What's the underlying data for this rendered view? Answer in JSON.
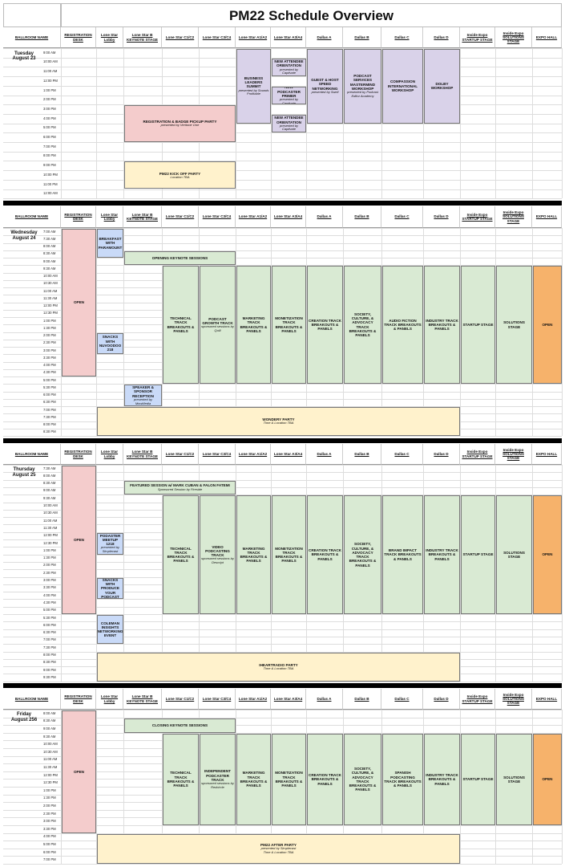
{
  "title": "PM22 Schedule Overview",
  "columns": [
    "BALLROOM NAME",
    "REGISTRATION DESK",
    "Lone Star Lobby",
    "Lone Star B KEYNOTE STAGE",
    "Lone Star C1/C2",
    "Lone Star C3/C4",
    "Lone Star A1/A2",
    "Lone Star A3/A4",
    "Dallas A",
    "Dallas B",
    "Dallas C",
    "Dallas D",
    "Inside Expo STARTUP STAGE",
    "Inside Expo SOLUTIONS STAGE",
    "EXPO HALL"
  ],
  "days": [
    {
      "label": "Tuesday\nAugust 23",
      "times": [
        "9:00 AM",
        "10:00 AM",
        "11:00 AM",
        "12:00 PM",
        "1:00 PM",
        "2:00 PM",
        "3:00 PM",
        "4:00 PM",
        "5:00 PM",
        "6:00 PM",
        "7:00 PM",
        "8:00 PM",
        "9:00 PM",
        "10:00 PM",
        "11:00 PM",
        "12:00 AM"
      ],
      "events": [
        {
          "col": 6,
          "cs": 1,
          "r0": 0,
          "r1": 8,
          "color": "purple",
          "title": "BUSINESS LEADERS SUMMIT",
          "sub": "presented by Sounds Profitable"
        },
        {
          "col": 7,
          "cs": 1,
          "r0": 1,
          "r1": 3,
          "color": "purple",
          "title": "NEW ATTENDEE ORIENTATION",
          "sub": "presented by Captivate"
        },
        {
          "col": 7,
          "cs": 1,
          "r0": 4,
          "r1": 6,
          "color": "purple",
          "title": "NEW PODCASTER PRIMER",
          "sub": "presented by Captivate"
        },
        {
          "col": 7,
          "cs": 1,
          "r0": 7,
          "r1": 9,
          "color": "purple",
          "title": "NEW ATTENDEE ORIENTATION",
          "sub": "presented by Captivate"
        },
        {
          "col": 8,
          "cs": 1,
          "r0": 0,
          "r1": 8,
          "color": "purple",
          "title": "GUEST & HOST SPEED NETWORKING",
          "sub": "presented by Swell"
        },
        {
          "col": 9,
          "cs": 1,
          "r0": 0,
          "r1": 8,
          "color": "purple",
          "title": "PODCAST SERVICES MASTERMIND WORKSHOP",
          "sub": "presented by Podcast Editor Academy"
        },
        {
          "col": 10,
          "cs": 1,
          "r0": 0,
          "r1": 8,
          "color": "purple",
          "title": "COMPASSION INTERNATIONAL WORKSHOP",
          "sub": ""
        },
        {
          "col": 11,
          "cs": 1,
          "r0": 0,
          "r1": 8,
          "color": "purple",
          "title": "DOLBY WORKSHOP",
          "sub": ""
        },
        {
          "col": 3,
          "cs": 3,
          "r0": 6,
          "r1": 10,
          "color": "pink",
          "title": "REGISTRATION & BADGE PICKUP PARTY",
          "sub": "presented by Veritone One"
        },
        {
          "col": 3,
          "cs": 3,
          "r0": 12,
          "r1": 15,
          "color": "yellow",
          "title": "PM22 KICK OFF PARTY",
          "sub": "Location TBA"
        }
      ]
    },
    {
      "label": "Wednesday\nAugust 24",
      "times": [
        "7:00 AM",
        "7:30 AM",
        "8:00 AM",
        "8:30 AM",
        "9:00 AM",
        "9:30 AM",
        "10:00 AM",
        "10:30 AM",
        "11:00 AM",
        "11:30 AM",
        "12:00 PM",
        "12:30 PM",
        "1:00 PM",
        "1:30 PM",
        "2:00 PM",
        "2:30 PM",
        "3:00 PM",
        "3:30 PM",
        "4:00 PM",
        "4:30 PM",
        "5:00 PM",
        "5:30 PM",
        "6:00 PM",
        "6:30 PM",
        "7:00 PM",
        "7:30 PM",
        "8:00 PM",
        "8:30 PM"
      ],
      "events": [
        {
          "col": 1,
          "cs": 1,
          "r0": 0,
          "r1": 20,
          "color": "pink",
          "title": "OPEN",
          "sub": ""
        },
        {
          "col": 2,
          "cs": 1,
          "r0": 0,
          "r1": 4,
          "color": "blue",
          "title": "BREAKFAST WITH PARAMOUNT",
          "sub": ""
        },
        {
          "col": 3,
          "cs": 3,
          "r0": 3,
          "r1": 5,
          "color": "green",
          "title": "OPENING KEYNOTE SESSIONS",
          "sub": ""
        },
        {
          "col": 4,
          "cs": 1,
          "r0": 5,
          "r1": 21,
          "color": "green",
          "title": "TECHNICAL TRACK BREAKOUTS & PANELS",
          "sub": ""
        },
        {
          "col": 5,
          "cs": 1,
          "r0": 5,
          "r1": 21,
          "color": "green",
          "title": "PODCAST GROWTH TRACK",
          "sub": "sponsored sessions by Quill"
        },
        {
          "col": 6,
          "cs": 1,
          "r0": 5,
          "r1": 21,
          "color": "green",
          "title": "MARKETING TRACK BREAKOUTS & PANELS",
          "sub": ""
        },
        {
          "col": 7,
          "cs": 1,
          "r0": 5,
          "r1": 21,
          "color": "green",
          "title": "MONETIZATION TRACK BREAKOUTS & PANELS",
          "sub": ""
        },
        {
          "col": 8,
          "cs": 1,
          "r0": 5,
          "r1": 21,
          "color": "green",
          "title": "CREATION TRACK BREAKOUTS & PANELS",
          "sub": ""
        },
        {
          "col": 9,
          "cs": 1,
          "r0": 5,
          "r1": 21,
          "color": "green",
          "title": "SOCIETY, CULTURE, & ADVOCACY TRACK BREAKOUTS & PANELS",
          "sub": ""
        },
        {
          "col": 10,
          "cs": 1,
          "r0": 5,
          "r1": 21,
          "color": "green",
          "title": "AUDIO FICTION TRACK BREAKOUTS & PANELS",
          "sub": ""
        },
        {
          "col": 11,
          "cs": 1,
          "r0": 5,
          "r1": 21,
          "color": "green",
          "title": "INDUSTRY TRACK BREAKOUTS & PANELS",
          "sub": ""
        },
        {
          "col": 12,
          "cs": 1,
          "r0": 5,
          "r1": 21,
          "color": "green",
          "title": "STARTUP STAGE",
          "sub": ""
        },
        {
          "col": 13,
          "cs": 1,
          "r0": 5,
          "r1": 21,
          "color": "green",
          "title": "SOLUTIONS STAGE",
          "sub": ""
        },
        {
          "col": 14,
          "cs": 1,
          "r0": 5,
          "r1": 21,
          "color": "orange",
          "title": "OPEN",
          "sub": ""
        },
        {
          "col": 2,
          "cs": 1,
          "r0": 14,
          "r1": 17,
          "color": "blue",
          "title": "SNACKS WITH NUVOODOO 218",
          "sub": ""
        },
        {
          "col": 3,
          "cs": 1,
          "r0": 21,
          "r1": 24,
          "color": "blue",
          "title": "SPEAKER & SPONSOR RECEPTION",
          "sub": "presented by MowMedia"
        },
        {
          "col": 2,
          "cs": 10,
          "r0": 24,
          "r1": 28,
          "color": "yellow",
          "title": "WONDERY PARTY",
          "sub": "Time & Location TBA"
        }
      ]
    },
    {
      "label": "Thursday\nAugust 25",
      "times": [
        "7:30 AM",
        "8:00 AM",
        "8:30 AM",
        "9:00 AM",
        "9:30 AM",
        "10:00 AM",
        "10:30 AM",
        "11:00 AM",
        "11:30 AM",
        "12:00 PM",
        "12:30 PM",
        "1:00 PM",
        "1:30 PM",
        "2:00 PM",
        "2:30 PM",
        "3:00 PM",
        "3:30 PM",
        "4:00 PM",
        "4:30 PM",
        "5:00 PM",
        "5:30 PM",
        "6:00 PM",
        "6:30 PM",
        "7:00 PM",
        "7:30 PM",
        "8:00 PM",
        "8:30 PM",
        "9:00 PM",
        "9:30 PM"
      ],
      "events": [
        {
          "col": 1,
          "cs": 1,
          "r0": 0,
          "r1": 20,
          "color": "pink",
          "title": "OPEN",
          "sub": ""
        },
        {
          "col": 3,
          "cs": 3,
          "r0": 2,
          "r1": 4,
          "color": "green",
          "title": "FEATURED SESSION w/ MARK CUBAN & FALON FATEMI",
          "sub": "Sponsored Session by Fireside"
        },
        {
          "col": 4,
          "cs": 1,
          "r0": 4,
          "r1": 20,
          "color": "green",
          "title": "TECHNICAL TRACK BREAKOUTS & PANELS",
          "sub": ""
        },
        {
          "col": 5,
          "cs": 1,
          "r0": 4,
          "r1": 20,
          "color": "green",
          "title": "VIDEO PODCASTING TRACK",
          "sub": "sponsored sessions by Descript"
        },
        {
          "col": 6,
          "cs": 1,
          "r0": 4,
          "r1": 20,
          "color": "green",
          "title": "MARKETING TRACK BREAKOUTS & PANELS",
          "sub": ""
        },
        {
          "col": 7,
          "cs": 1,
          "r0": 4,
          "r1": 20,
          "color": "green",
          "title": "MONETIZATION TRACK BREAKOUTS & PANELS",
          "sub": ""
        },
        {
          "col": 8,
          "cs": 1,
          "r0": 4,
          "r1": 20,
          "color": "green",
          "title": "CREATION TRACK BREAKOUTS & PANELS",
          "sub": ""
        },
        {
          "col": 9,
          "cs": 1,
          "r0": 4,
          "r1": 20,
          "color": "green",
          "title": "SOCIETY, CULTURE, & ADVOCACY TRACK BREAKOUTS & PANELS",
          "sub": ""
        },
        {
          "col": 10,
          "cs": 1,
          "r0": 4,
          "r1": 20,
          "color": "green",
          "title": "BRAND IMPACT TRACK BREAKOUTS & PANELS",
          "sub": ""
        },
        {
          "col": 11,
          "cs": 1,
          "r0": 4,
          "r1": 20,
          "color": "green",
          "title": "INDUSTRY TRACK BREAKOUTS & PANELS",
          "sub": ""
        },
        {
          "col": 12,
          "cs": 1,
          "r0": 4,
          "r1": 20,
          "color": "green",
          "title": "STARTUP STAGE",
          "sub": ""
        },
        {
          "col": 13,
          "cs": 1,
          "r0": 4,
          "r1": 20,
          "color": "green",
          "title": "SOLUTIONS STAGE",
          "sub": ""
        },
        {
          "col": 14,
          "cs": 1,
          "r0": 4,
          "r1": 20,
          "color": "orange",
          "title": "OPEN",
          "sub": ""
        },
        {
          "col": 2,
          "cs": 1,
          "r0": 9,
          "r1": 12,
          "color": "blue",
          "title": "PODASTER MEETUP 1218",
          "sub": "presented by Simplecast"
        },
        {
          "col": 2,
          "cs": 1,
          "r0": 15,
          "r1": 18,
          "color": "blue",
          "title": "SNACKS WITH PRODUCE YOUR PODCAST",
          "sub": ""
        },
        {
          "col": 2,
          "cs": 1,
          "r0": 20,
          "r1": 24,
          "color": "blue",
          "title": "COLEMAN INSIGHTS NETWORKING EVENT",
          "sub": ""
        },
        {
          "col": 2,
          "cs": 10,
          "r0": 25,
          "r1": 29,
          "color": "yellow",
          "title": "IHEARTRADIO PARTY",
          "sub": "Time & Location TBA"
        }
      ]
    },
    {
      "label": "Friday\nAugust 256",
      "times": [
        "8:00 AM",
        "8:30 AM",
        "9:00 AM",
        "9:30 AM",
        "10:00 AM",
        "10:30 AM",
        "11:00 AM",
        "11:30 AM",
        "12:00 PM",
        "12:30 PM",
        "1:00 PM",
        "1:30 PM",
        "2:00 PM",
        "2:30 PM",
        "3:00 PM",
        "3:30 PM",
        "4:00 PM",
        "5:00 PM",
        "6:00 PM",
        "7:00 PM"
      ],
      "events": [
        {
          "col": 1,
          "cs": 1,
          "r0": 0,
          "r1": 16,
          "color": "pink",
          "title": "OPEN",
          "sub": ""
        },
        {
          "col": 3,
          "cs": 3,
          "r0": 1,
          "r1": 3,
          "color": "green",
          "title": "CLOSING KEYNOTE SESSIONS",
          "sub": ""
        },
        {
          "col": 4,
          "cs": 1,
          "r0": 3,
          "r1": 15,
          "color": "green",
          "title": "TECHNICAL TRACK BREAKOUTS & PANELS",
          "sub": ""
        },
        {
          "col": 5,
          "cs": 1,
          "r0": 3,
          "r1": 15,
          "color": "green",
          "title": "INDEPENDENT PODCASTER TRACK",
          "sub": "sponsored sessions by Redcircle"
        },
        {
          "col": 6,
          "cs": 1,
          "r0": 3,
          "r1": 15,
          "color": "green",
          "title": "MARKETING TRACK BREAKOUTS & PANELS",
          "sub": ""
        },
        {
          "col": 7,
          "cs": 1,
          "r0": 3,
          "r1": 15,
          "color": "green",
          "title": "MONETIZATION TRACK BREAKOUTS & PANELS",
          "sub": ""
        },
        {
          "col": 8,
          "cs": 1,
          "r0": 3,
          "r1": 15,
          "color": "green",
          "title": "CREATION TRACK BREAKOUTS & PANELS",
          "sub": ""
        },
        {
          "col": 9,
          "cs": 1,
          "r0": 3,
          "r1": 15,
          "color": "green",
          "title": "SOCIETY, CULTURE, & ADVOCACY TRACK BREAKOUTS & PANELS",
          "sub": ""
        },
        {
          "col": 10,
          "cs": 1,
          "r0": 3,
          "r1": 15,
          "color": "green",
          "title": "SPANISH PODCASTING TRACK BREAKOUTS & PANELS",
          "sub": ""
        },
        {
          "col": 11,
          "cs": 1,
          "r0": 3,
          "r1": 15,
          "color": "green",
          "title": "INDUSTRY TRACK BREAKOUTS & PANELS",
          "sub": ""
        },
        {
          "col": 12,
          "cs": 1,
          "r0": 3,
          "r1": 15,
          "color": "green",
          "title": "STARTUP STAGE",
          "sub": ""
        },
        {
          "col": 13,
          "cs": 1,
          "r0": 3,
          "r1": 15,
          "color": "green",
          "title": "SOLUTIONS STAGE",
          "sub": ""
        },
        {
          "col": 14,
          "cs": 1,
          "r0": 3,
          "r1": 15,
          "color": "orange",
          "title": "OPEN",
          "sub": ""
        },
        {
          "col": 2,
          "cs": 10,
          "r0": 16,
          "r1": 20,
          "color": "yellow",
          "title": "PM22 AFTER PARTY",
          "sub": "presented by Simplecast\nTime & Location TBA"
        }
      ]
    }
  ]
}
